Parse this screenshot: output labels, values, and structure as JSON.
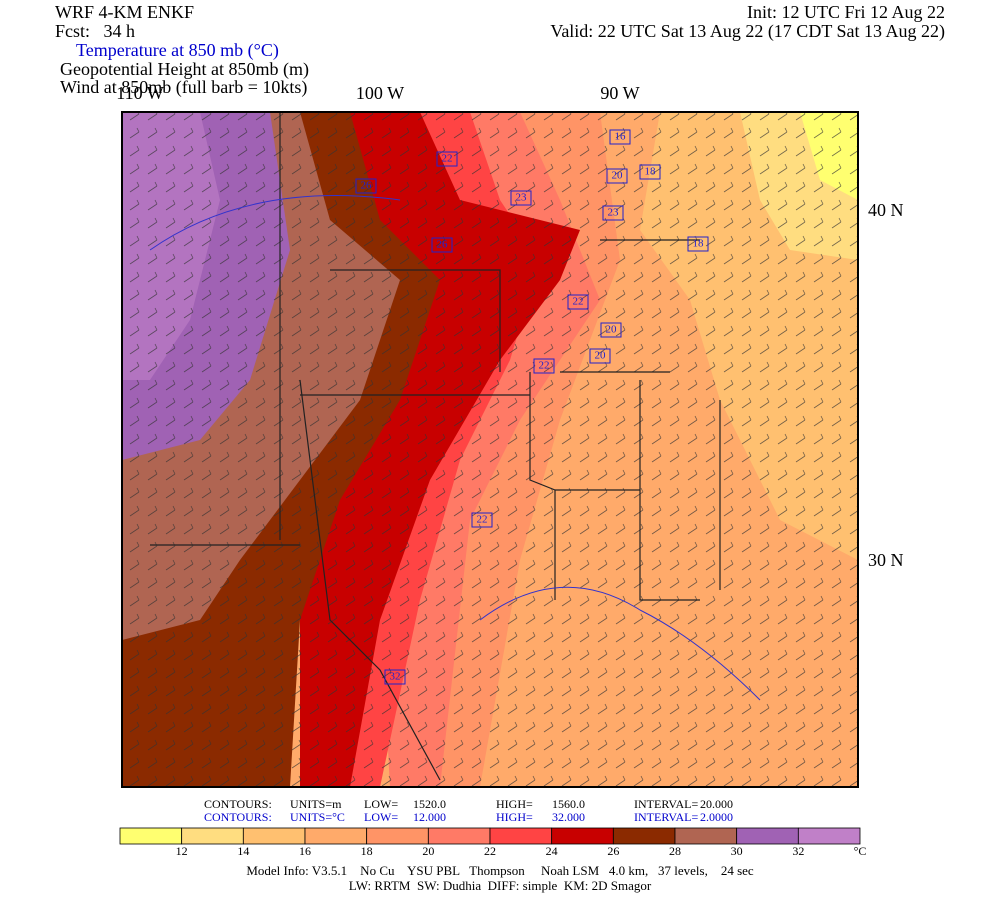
{
  "header": {
    "left": [
      "WRF 4-KM ENKF",
      "Fcst:   34 h"
    ],
    "right": [
      "Init: 12 UTC Fri 12 Aug 22",
      "Valid: 22 UTC Sat 13 Aug 22 (17 CDT Sat 13 Aug 22)"
    ],
    "fields": [
      "Temperature at 850 mb (°C)",
      "Geopotential Height at 850mb (m)",
      "Wind at 850mb (full barb = 10kts)"
    ]
  },
  "map": {
    "longitudes": [
      "110 W",
      "100 W",
      "90 W"
    ],
    "latitudes": [
      "40 N",
      "30 N"
    ],
    "contour_labels": [
      "16",
      "22",
      "26",
      "20",
      "18",
      "23",
      "23",
      "26",
      "18",
      "22",
      "20",
      "20",
      "22",
      "22",
      "32"
    ]
  },
  "colorbar": {
    "levels": [
      12,
      14,
      16,
      18,
      20,
      22,
      24,
      26,
      28,
      30,
      32
    ],
    "colors": [
      "#ffff70",
      "#ffdd80",
      "#ffc070",
      "#ffaa6a",
      "#ff9466",
      "#ff7a66",
      "#ff4444",
      "#c80000",
      "#8b2a00",
      "#b06552",
      "#a062b4",
      "#c080c8"
    ],
    "unit": "°C"
  },
  "footer": {
    "contours": [
      [
        "CONTOURS:",
        "UNITS=m",
        "LOW=",
        "1520.0",
        "HIGH=",
        "1560.0",
        "INTERVAL=",
        "20.000"
      ],
      [
        "CONTOURS:",
        "UNITS=°C",
        "LOW=",
        "12.000",
        "HIGH=",
        "32.000",
        "INTERVAL=",
        "2.0000"
      ]
    ],
    "model_info": [
      "Model Info: V3.5.1    No Cu    YSU PBL   Thompson     Noah LSM   4.0 km,   37 levels,    24 sec",
      "LW: RRTM  SW: Dudhia  DIFF: simple  KM: 2D Smagor"
    ]
  }
}
